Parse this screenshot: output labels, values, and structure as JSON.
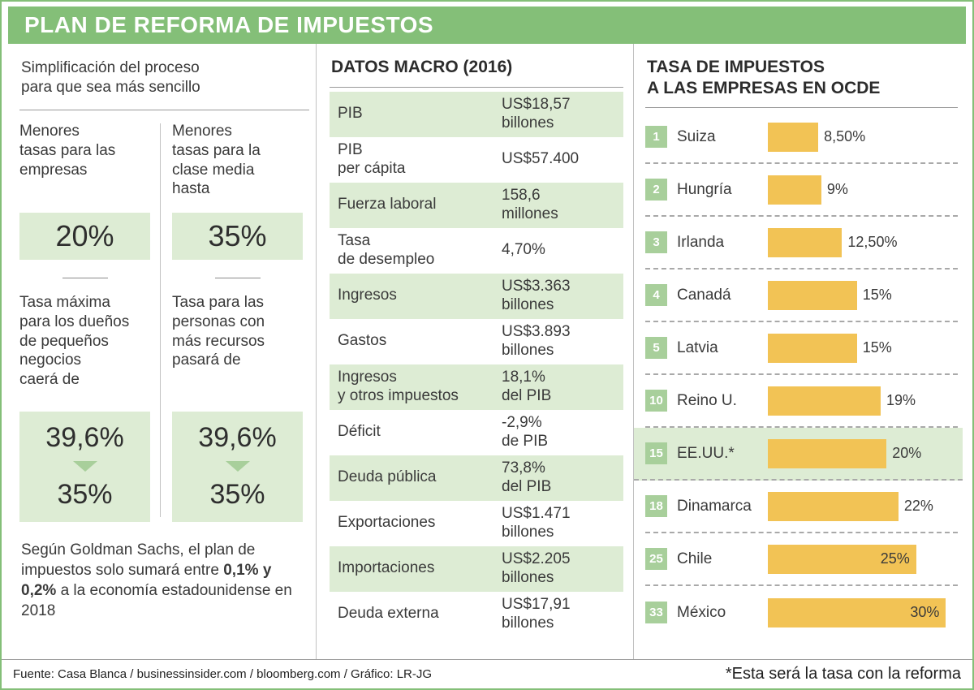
{
  "colors": {
    "header_green": "#84bf78",
    "pale_green": "#ddecd4",
    "badge_green": "#a8cf9b",
    "bar_yellow": "#f2c355",
    "text": "#3a3a3a"
  },
  "header": {
    "title": "PLAN DE REFORMA DE IMPUESTOS"
  },
  "left": {
    "intro": "Simplificación del proceso\npara que sea más sencillo",
    "top_stats": [
      {
        "label": "Menores\ntasas para las\nempresas",
        "value": "20%"
      },
      {
        "label": "Menores\ntasas para la\nclase media\nhasta",
        "value": "35%"
      }
    ],
    "bottom_stats": [
      {
        "label": "Tasa máxima\npara los dueños\nde pequeños\nnegocios\ncaerá de",
        "from": "39,6%",
        "to": "35%"
      },
      {
        "label": "Tasa para las\npersonas con\nmás recursos\npasará de",
        "from": "39,6%",
        "to": "35%"
      }
    ],
    "note": {
      "before": "Según Goldman Sachs, el plan de impuestos solo sumará entre ",
      "bold": "0,1% y 0,2%",
      "after": " a la economía estadounidense en 2018"
    }
  },
  "macro": {
    "title": "DATOS MACRO (2016)",
    "rows": [
      {
        "label": "PIB",
        "value": "US$18,57\nbillones"
      },
      {
        "label": "PIB\nper cápita",
        "value": "US$57.400"
      },
      {
        "label": "Fuerza laboral",
        "value": "158,6\nmillones"
      },
      {
        "label": "Tasa\nde desempleo",
        "value": "4,70%"
      },
      {
        "label": "Ingresos",
        "value": "US$3.363\nbillones"
      },
      {
        "label": "Gastos",
        "value": "US$3.893\nbillones"
      },
      {
        "label": "Ingresos\ny otros impuestos",
        "value": "18,1%\ndel PIB"
      },
      {
        "label": "Déficit",
        "value": "-2,9%\nde PIB"
      },
      {
        "label": "Deuda pública",
        "value": "73,8%\ndel PIB"
      },
      {
        "label": "Exportaciones",
        "value": "US$1.471\nbillones"
      },
      {
        "label": "Importaciones",
        "value": "US$2.205\nbillones"
      },
      {
        "label": "Deuda externa",
        "value": "US$17,91\nbillones"
      }
    ]
  },
  "ocde": {
    "title": "TASA DE IMPUESTOS\nA LAS EMPRESAS EN OCDE",
    "footnote": "*Esta será la tasa con la reforma",
    "rows": [
      {
        "rank": "1",
        "country": "Suiza",
        "value": 8.5,
        "pct": "8,50%"
      },
      {
        "rank": "2",
        "country": "Hungría",
        "value": 9,
        "pct": "9%"
      },
      {
        "rank": "3",
        "country": "Irlanda",
        "value": 12.5,
        "pct": "12,50%"
      },
      {
        "rank": "4",
        "country": "Canadá",
        "value": 15,
        "pct": "15%"
      },
      {
        "rank": "5",
        "country": "Latvia",
        "value": 15,
        "pct": "15%"
      },
      {
        "rank": "10",
        "country": "Reino U.",
        "value": 19,
        "pct": "19%"
      },
      {
        "rank": "15",
        "country": "EE.UU.*",
        "value": 20,
        "pct": "20%"
      },
      {
        "rank": "18",
        "country": "Dinamarca",
        "value": 22,
        "pct": "22%"
      },
      {
        "rank": "25",
        "country": "Chile",
        "value": 25,
        "pct": "25%"
      },
      {
        "rank": "33",
        "country": "México",
        "value": 30,
        "pct": "30%"
      }
    ]
  },
  "chart_data": [
    {
      "type": "bar",
      "orientation": "horizontal",
      "title": "TASA DE IMPUESTOS A LAS EMPRESAS EN OCDE",
      "categories": [
        "Suiza",
        "Hungría",
        "Irlanda",
        "Canadá",
        "Latvia",
        "Reino U.",
        "EE.UU.*",
        "Dinamarca",
        "Chile",
        "México"
      ],
      "ranks": [
        1,
        2,
        3,
        4,
        5,
        10,
        15,
        18,
        25,
        33
      ],
      "values": [
        8.5,
        9,
        12.5,
        15,
        15,
        19,
        20,
        22,
        25,
        30
      ],
      "value_labels": [
        "8,50%",
        "9%",
        "12,50%",
        "15%",
        "15%",
        "19%",
        "20%",
        "22%",
        "25%",
        "30%"
      ],
      "highlight_category": "EE.UU.*",
      "footnote": "*Esta será la tasa con la reforma",
      "bar_color": "#f2c355",
      "xlim": [
        0,
        32
      ],
      "grid": false,
      "legend": false
    },
    {
      "type": "table",
      "title": "DATOS MACRO (2016)",
      "rows": [
        [
          "PIB",
          "US$18,57 billones"
        ],
        [
          "PIB per cápita",
          "US$57.400"
        ],
        [
          "Fuerza laboral",
          "158,6 millones"
        ],
        [
          "Tasa de desempleo",
          "4,70%"
        ],
        [
          "Ingresos",
          "US$3.363 billones"
        ],
        [
          "Gastos",
          "US$3.893 billones"
        ],
        [
          "Ingresos y otros impuestos",
          "18,1% del PIB"
        ],
        [
          "Déficit",
          "-2,9% de PIB"
        ],
        [
          "Deuda pública",
          "73,8% del PIB"
        ],
        [
          "Exportaciones",
          "US$1.471 billones"
        ],
        [
          "Importaciones",
          "US$2.205 billones"
        ],
        [
          "Deuda externa",
          "US$17,91 billones"
        ]
      ]
    }
  ],
  "footer": {
    "source": "Fuente: Casa Blanca / businessinsider.com / bloomberg.com / Gráfico: LR-JG"
  }
}
